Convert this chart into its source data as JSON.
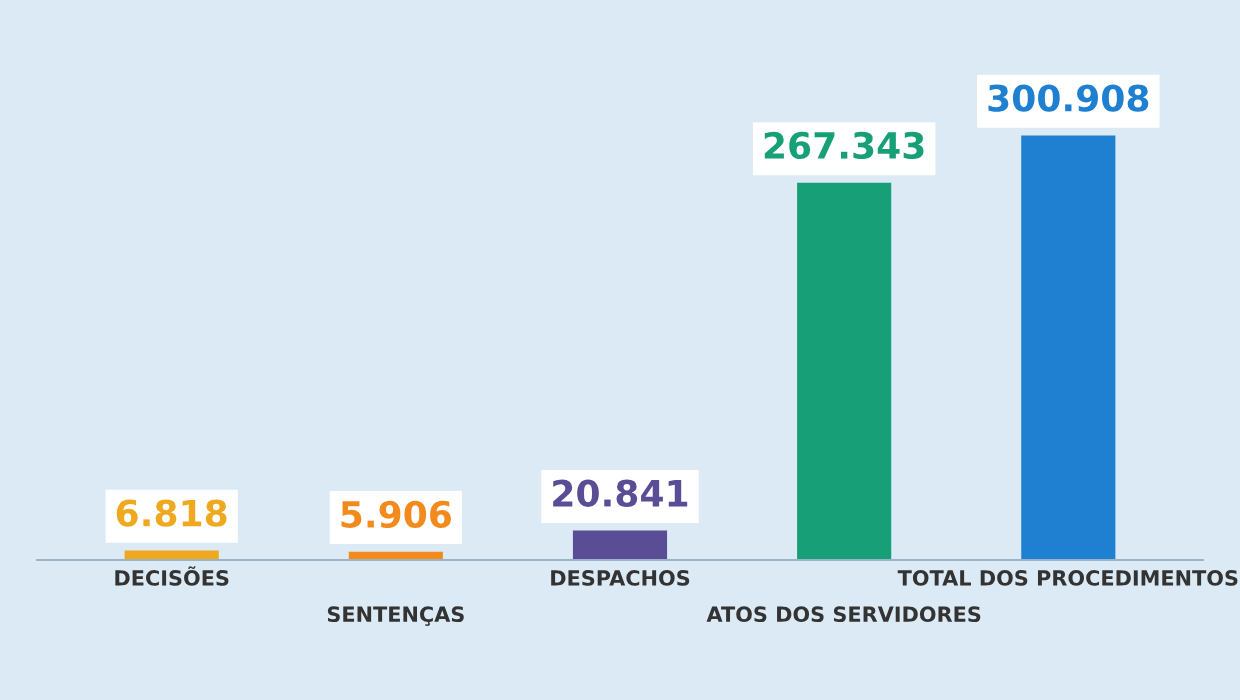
{
  "chart_data": {
    "type": "bar",
    "categories": [
      "DECISÕES",
      "SENTENÇAS",
      "DESPACHOS",
      "ATOS DOS SERVIDORES",
      "TOTAL DOS PROCEDIMENTOS"
    ],
    "values": [
      6818,
      5906,
      20841,
      267343,
      300908
    ],
    "value_labels": [
      "6.818",
      "5.906",
      "20.841",
      "267.343",
      "300.908"
    ],
    "colors": [
      "#f0a81e",
      "#f28a1c",
      "#5b4c96",
      "#17a078",
      "#1f80d2"
    ]
  }
}
